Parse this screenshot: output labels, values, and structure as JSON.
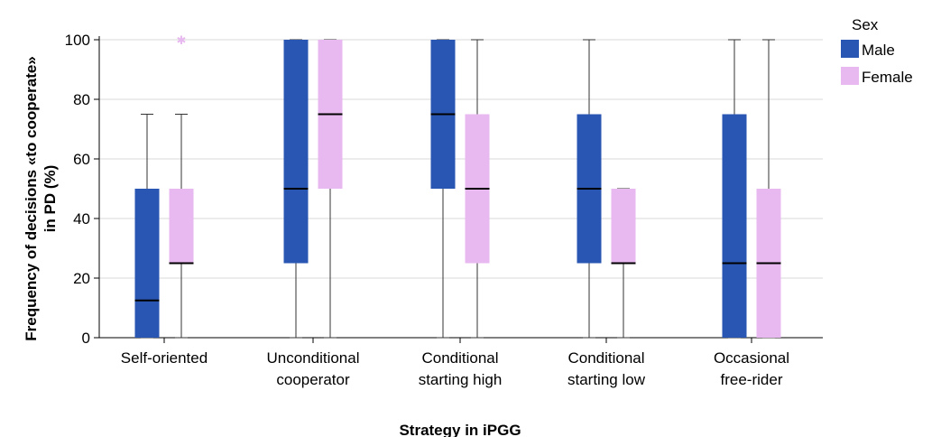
{
  "chart_data": {
    "type": "boxplot",
    "title": "",
    "xlabel": "Strategy in iPGG",
    "ylabel_lines": [
      "Frequency of decisions «to cooperate»",
      "in PD (%)"
    ],
    "ylim": [
      0,
      100
    ],
    "yticks": [
      0,
      20,
      40,
      60,
      80,
      100
    ],
    "grid": "horizontal",
    "legend": {
      "title": "Sex",
      "placement": "right"
    },
    "categories": [
      [
        "Self-oriented"
      ],
      [
        "Unconditional",
        "cooperator"
      ],
      [
        "Conditional",
        "starting high"
      ],
      [
        "Conditional",
        "starting low"
      ],
      [
        "Occasional",
        "free-rider"
      ]
    ],
    "series": [
      {
        "name": "Male",
        "color": "#2a56b3",
        "boxes": [
          {
            "min": 0,
            "q1": 0,
            "median": 12.5,
            "q3": 50,
            "max": 75,
            "outliers": []
          },
          {
            "min": 0,
            "q1": 25,
            "median": 50,
            "q3": 100,
            "max": 100,
            "outliers": []
          },
          {
            "min": 0,
            "q1": 50,
            "median": 75,
            "q3": 100,
            "max": 100,
            "outliers": []
          },
          {
            "min": 0,
            "q1": 25,
            "median": 50,
            "q3": 75,
            "max": 100,
            "outliers": []
          },
          {
            "min": 0,
            "q1": 0,
            "median": 25,
            "q3": 75,
            "max": 100,
            "outliers": []
          }
        ]
      },
      {
        "name": "Female",
        "color": "#e8b9f0",
        "boxes": [
          {
            "min": 0,
            "q1": 25,
            "median": 25,
            "q3": 50,
            "max": 75,
            "outliers": [
              100
            ]
          },
          {
            "min": 0,
            "q1": 50,
            "median": 75,
            "q3": 100,
            "max": 100,
            "outliers": []
          },
          {
            "min": 0,
            "q1": 25,
            "median": 50,
            "q3": 75,
            "max": 100,
            "outliers": []
          },
          {
            "min": 0,
            "q1": 25,
            "median": 25,
            "q3": 50,
            "max": 50,
            "outliers": []
          },
          {
            "min": 0,
            "q1": 0,
            "median": 25,
            "q3": 50,
            "max": 100,
            "outliers": []
          }
        ]
      }
    ]
  }
}
